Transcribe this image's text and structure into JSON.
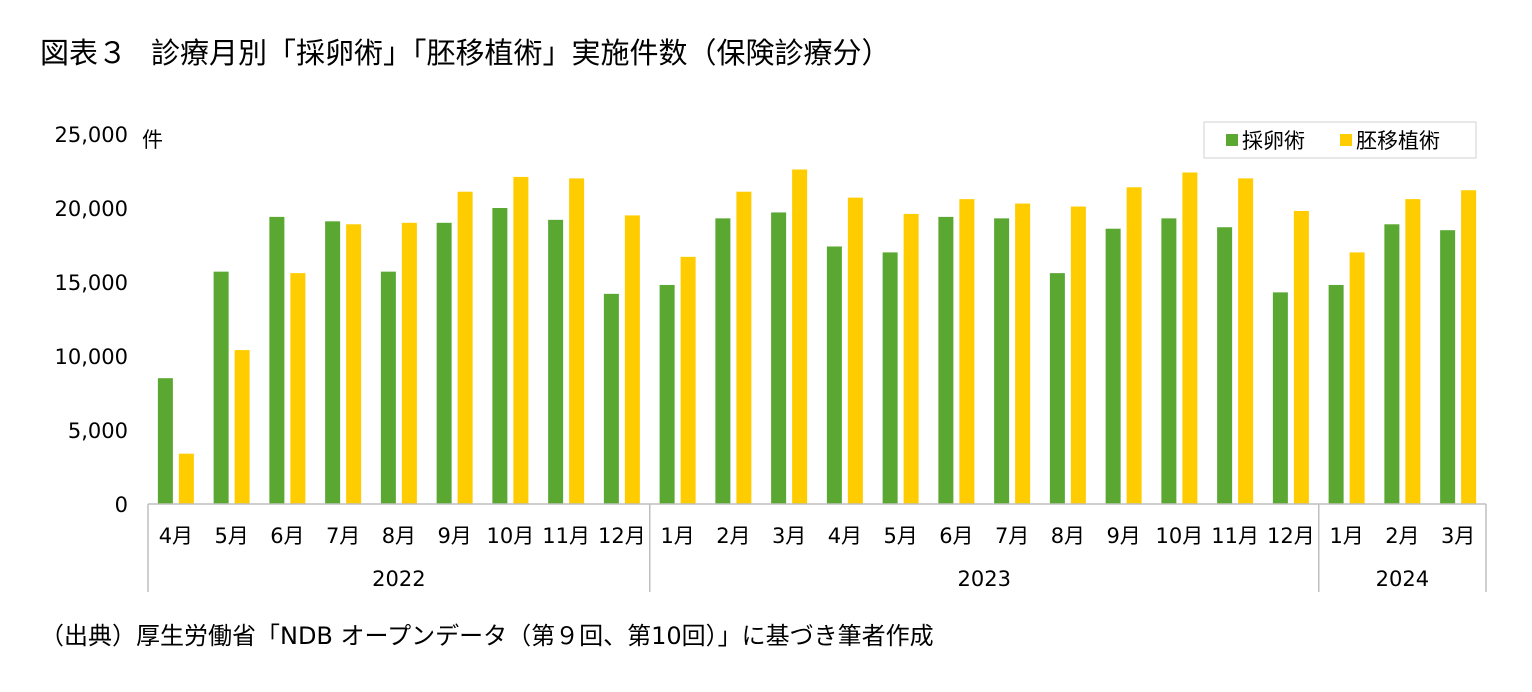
{
  "title": {
    "prefix": "図表３",
    "text": "診療月別「採卵術」「胚移植術」実施件数（保険診療分）"
  },
  "source": "（出典）厚生労働省「NDB オープンデータ（第９回、第10回）」に基づき筆者作成",
  "chart_data": {
    "type": "bar",
    "y_unit": "件",
    "ylim": [
      0,
      25000
    ],
    "yticks": [
      0,
      5000,
      10000,
      15000,
      20000,
      25000
    ],
    "ytick_labels": [
      "0",
      "5,000",
      "10,000",
      "15,000",
      "20,000",
      "25,000"
    ],
    "grid": false,
    "legend_position": "top-right",
    "categories": [
      "4月",
      "5月",
      "6月",
      "7月",
      "8月",
      "9月",
      "10月",
      "11月",
      "12月",
      "1月",
      "2月",
      "3月",
      "4月",
      "5月",
      "6月",
      "7月",
      "8月",
      "9月",
      "10月",
      "11月",
      "12月",
      "1月",
      "2月",
      "3月"
    ],
    "groups": [
      {
        "label": "2022",
        "count": 9
      },
      {
        "label": "2023",
        "count": 12
      },
      {
        "label": "2024",
        "count": 3
      }
    ],
    "series": [
      {
        "name": "採卵術",
        "color": "#5aa832",
        "values": [
          8500,
          15700,
          19400,
          19100,
          15700,
          19000,
          20000,
          19200,
          14200,
          14800,
          19300,
          19700,
          17400,
          17000,
          19400,
          19300,
          15600,
          18600,
          19300,
          18700,
          14300,
          14800,
          18900,
          18500
        ]
      },
      {
        "name": "胚移植術",
        "color": "#ffcc00",
        "values": [
          3400,
          10400,
          15600,
          18900,
          19000,
          21100,
          22100,
          22000,
          19500,
          16700,
          21100,
          22600,
          20700,
          19600,
          20600,
          20300,
          20100,
          21400,
          22400,
          22000,
          19800,
          17000,
          20600,
          21200
        ]
      }
    ]
  }
}
